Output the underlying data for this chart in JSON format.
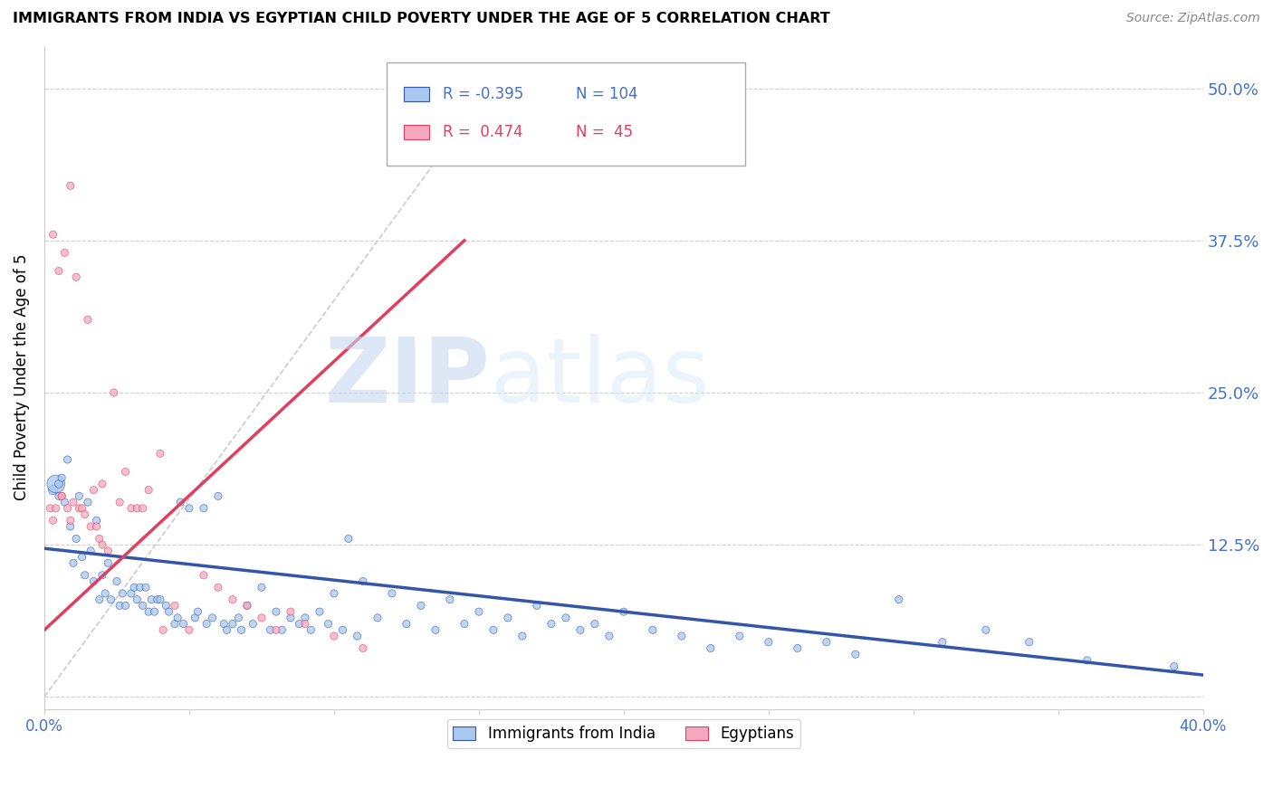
{
  "title": "IMMIGRANTS FROM INDIA VS EGYPTIAN CHILD POVERTY UNDER THE AGE OF 5 CORRELATION CHART",
  "source": "Source: ZipAtlas.com",
  "ylabel": "Child Poverty Under the Age of 5",
  "legend_label1": "Immigrants from India",
  "legend_label2": "Egyptians",
  "r1": -0.395,
  "n1": 104,
  "r2": 0.474,
  "n2": 45,
  "color_blue": "#A8C8F0",
  "color_pink": "#F4A8BE",
  "color_blue_line": "#3355AA",
  "color_pink_line": "#E04060",
  "color_label_blue": "#4472C4",
  "color_label_pink": "#E04060",
  "xlim": [
    0.0,
    0.4
  ],
  "ylim": [
    -0.01,
    0.535
  ],
  "yticks": [
    0.0,
    0.125,
    0.25,
    0.375,
    0.5
  ],
  "ytick_labels_right": [
    "",
    "12.5%",
    "25.0%",
    "37.5%",
    "50.0%"
  ],
  "xticks": [
    0.0,
    0.05,
    0.1,
    0.15,
    0.2,
    0.25,
    0.3,
    0.35,
    0.4
  ],
  "xtick_labels": [
    "0.0%",
    "",
    "",
    "",
    "",
    "",
    "",
    "",
    "40.0%"
  ],
  "watermark_zip": "ZIP",
  "watermark_atlas": "atlas",
  "blue_trend_x": [
    0.0,
    0.4
  ],
  "blue_trend_y": [
    0.122,
    0.018
  ],
  "pink_trend_x": [
    0.0,
    0.145
  ],
  "pink_trend_y": [
    0.055,
    0.375
  ],
  "diag_line_x": [
    0.0,
    0.155
  ],
  "diag_line_y": [
    0.0,
    0.505
  ],
  "blue_x": [
    0.003,
    0.004,
    0.005,
    0.005,
    0.006,
    0.007,
    0.008,
    0.009,
    0.01,
    0.011,
    0.012,
    0.013,
    0.014,
    0.015,
    0.016,
    0.017,
    0.018,
    0.019,
    0.02,
    0.021,
    0.022,
    0.023,
    0.025,
    0.026,
    0.027,
    0.028,
    0.03,
    0.031,
    0.032,
    0.033,
    0.034,
    0.035,
    0.036,
    0.037,
    0.038,
    0.039,
    0.04,
    0.042,
    0.043,
    0.045,
    0.046,
    0.047,
    0.048,
    0.05,
    0.052,
    0.053,
    0.055,
    0.056,
    0.058,
    0.06,
    0.062,
    0.063,
    0.065,
    0.067,
    0.068,
    0.07,
    0.072,
    0.075,
    0.078,
    0.08,
    0.082,
    0.085,
    0.088,
    0.09,
    0.092,
    0.095,
    0.098,
    0.1,
    0.103,
    0.105,
    0.108,
    0.11,
    0.115,
    0.12,
    0.125,
    0.13,
    0.135,
    0.14,
    0.145,
    0.15,
    0.155,
    0.16,
    0.165,
    0.17,
    0.175,
    0.18,
    0.185,
    0.19,
    0.195,
    0.2,
    0.21,
    0.22,
    0.23,
    0.24,
    0.25,
    0.26,
    0.27,
    0.28,
    0.295,
    0.31,
    0.325,
    0.34,
    0.36,
    0.39
  ],
  "blue_y": [
    0.17,
    0.175,
    0.175,
    0.165,
    0.18,
    0.16,
    0.195,
    0.14,
    0.11,
    0.13,
    0.165,
    0.115,
    0.1,
    0.16,
    0.12,
    0.095,
    0.145,
    0.08,
    0.1,
    0.085,
    0.11,
    0.08,
    0.095,
    0.075,
    0.085,
    0.075,
    0.085,
    0.09,
    0.08,
    0.09,
    0.075,
    0.09,
    0.07,
    0.08,
    0.07,
    0.08,
    0.08,
    0.075,
    0.07,
    0.06,
    0.065,
    0.16,
    0.06,
    0.155,
    0.065,
    0.07,
    0.155,
    0.06,
    0.065,
    0.165,
    0.06,
    0.055,
    0.06,
    0.065,
    0.055,
    0.075,
    0.06,
    0.09,
    0.055,
    0.07,
    0.055,
    0.065,
    0.06,
    0.065,
    0.055,
    0.07,
    0.06,
    0.085,
    0.055,
    0.13,
    0.05,
    0.095,
    0.065,
    0.085,
    0.06,
    0.075,
    0.055,
    0.08,
    0.06,
    0.07,
    0.055,
    0.065,
    0.05,
    0.075,
    0.06,
    0.065,
    0.055,
    0.06,
    0.05,
    0.07,
    0.055,
    0.05,
    0.04,
    0.05,
    0.045,
    0.04,
    0.045,
    0.035,
    0.08,
    0.045,
    0.055,
    0.045,
    0.03,
    0.025
  ],
  "blue_s": [
    55,
    200,
    40,
    35,
    35,
    35,
    35,
    35,
    35,
    35,
    35,
    35,
    35,
    35,
    35,
    35,
    35,
    35,
    35,
    35,
    35,
    35,
    35,
    35,
    35,
    35,
    35,
    35,
    35,
    35,
    35,
    35,
    35,
    35,
    35,
    35,
    35,
    35,
    35,
    35,
    35,
    35,
    35,
    35,
    35,
    35,
    35,
    35,
    35,
    35,
    35,
    35,
    35,
    35,
    35,
    35,
    35,
    35,
    35,
    35,
    35,
    35,
    35,
    35,
    35,
    35,
    35,
    35,
    35,
    35,
    35,
    35,
    35,
    35,
    35,
    35,
    35,
    35,
    35,
    35,
    35,
    35,
    35,
    35,
    35,
    35,
    35,
    35,
    35,
    35,
    35,
    35,
    35,
    35,
    35,
    35,
    35,
    35,
    35,
    35,
    35,
    35,
    35,
    35
  ],
  "pink_x": [
    0.002,
    0.003,
    0.004,
    0.005,
    0.006,
    0.007,
    0.008,
    0.009,
    0.01,
    0.011,
    0.012,
    0.013,
    0.014,
    0.015,
    0.016,
    0.017,
    0.018,
    0.019,
    0.02,
    0.022,
    0.024,
    0.026,
    0.028,
    0.03,
    0.032,
    0.034,
    0.036,
    0.04,
    0.045,
    0.05,
    0.055,
    0.06,
    0.065,
    0.07,
    0.075,
    0.08,
    0.085,
    0.09,
    0.1,
    0.11,
    0.003,
    0.006,
    0.009,
    0.02,
    0.041
  ],
  "pink_y": [
    0.155,
    0.38,
    0.155,
    0.35,
    0.165,
    0.365,
    0.155,
    0.42,
    0.16,
    0.345,
    0.155,
    0.155,
    0.15,
    0.31,
    0.14,
    0.17,
    0.14,
    0.13,
    0.175,
    0.12,
    0.25,
    0.16,
    0.185,
    0.155,
    0.155,
    0.155,
    0.17,
    0.2,
    0.075,
    0.055,
    0.1,
    0.09,
    0.08,
    0.075,
    0.065,
    0.055,
    0.07,
    0.06,
    0.05,
    0.04,
    0.145,
    0.165,
    0.145,
    0.125,
    0.055
  ],
  "pink_s": [
    35,
    35,
    35,
    35,
    35,
    35,
    35,
    35,
    35,
    35,
    35,
    35,
    35,
    35,
    35,
    35,
    35,
    35,
    35,
    35,
    35,
    35,
    35,
    35,
    35,
    35,
    35,
    35,
    35,
    35,
    35,
    35,
    35,
    35,
    35,
    35,
    35,
    35,
    35,
    35,
    35,
    35,
    35,
    35,
    35
  ]
}
